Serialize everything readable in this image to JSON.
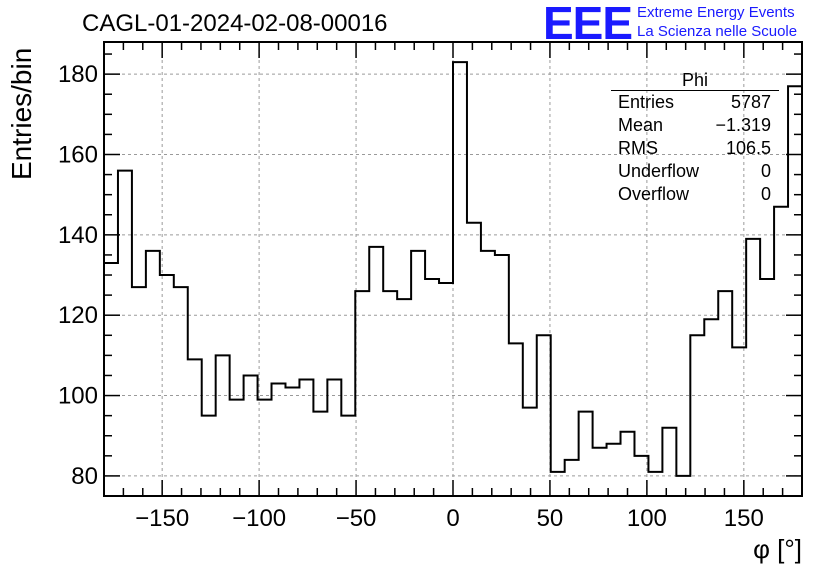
{
  "chart_data": {
    "type": "bar",
    "style": "step-histogram",
    "title": "CAGL-01-2024-02-08-00016",
    "xlabel": "φ [°]",
    "ylabel": "Entries/bin",
    "xlim": [
      -180,
      180
    ],
    "ylim": [
      75,
      188
    ],
    "bin_width": 7.2,
    "x_ticks": [
      "−150",
      "−100",
      "−50",
      "0",
      "50",
      "100",
      "150"
    ],
    "x_tick_values": [
      -150,
      -100,
      -50,
      0,
      50,
      100,
      150
    ],
    "y_ticks": [
      "80",
      "100",
      "120",
      "140",
      "160",
      "180"
    ],
    "y_tick_values": [
      80,
      100,
      120,
      140,
      160,
      180
    ],
    "grid": true,
    "values": [
      133,
      156,
      127,
      136,
      130,
      127,
      109,
      95,
      110,
      99,
      105,
      99,
      103,
      102,
      104,
      96,
      104,
      95,
      126,
      137,
      126,
      124,
      136,
      129,
      128,
      183,
      143,
      136,
      135,
      113,
      97,
      115,
      81,
      84,
      96,
      87,
      88,
      91,
      85,
      81,
      92,
      80,
      115,
      119,
      126,
      112,
      139,
      129,
      147,
      177
    ],
    "color": "#000000",
    "stats_box": {
      "name": "Phi",
      "rows": [
        {
          "label": "Entries",
          "value": "5787"
        },
        {
          "label": "Mean",
          "value": "−1.319"
        },
        {
          "label": "RMS",
          "value": "106.5"
        },
        {
          "label": "Underflow",
          "value": "0"
        },
        {
          "label": "Overflow",
          "value": "0"
        }
      ]
    }
  },
  "logo": {
    "mark": "EEE",
    "line1": "Extreme Energy Events",
    "line2": "La Scienza nelle Scuole",
    "color": "#1a1aff"
  }
}
